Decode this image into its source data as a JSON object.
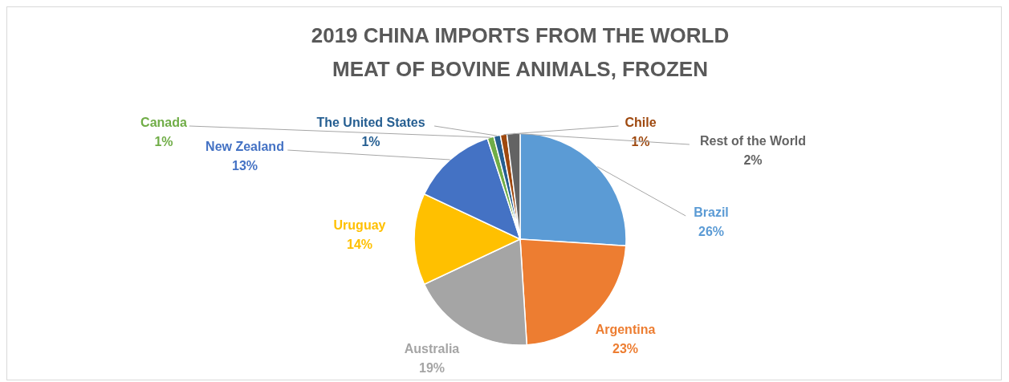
{
  "chart_data": {
    "type": "pie",
    "title": "2019 CHINA IMPORTS FROM THE WORLD\nMEAT OF BOVINE ANIMALS, FROZEN",
    "categories": [
      "Brazil",
      "Argentina",
      "Australia",
      "Uruguay",
      "New Zealand",
      "Canada",
      "The United States",
      "Chile",
      "Rest of the World"
    ],
    "values": [
      26,
      23,
      19,
      14,
      13,
      1,
      1,
      1,
      2
    ],
    "colors": [
      "#5b9bd5",
      "#ed7d31",
      "#a5a5a5",
      "#ffc000",
      "#4472c4",
      "#70ad47",
      "#255e91",
      "#9e480e",
      "#636363"
    ],
    "value_labels": [
      "26%",
      "23%",
      "19%",
      "14%",
      "13%",
      "1%",
      "1%",
      "1%",
      "2%"
    ]
  }
}
